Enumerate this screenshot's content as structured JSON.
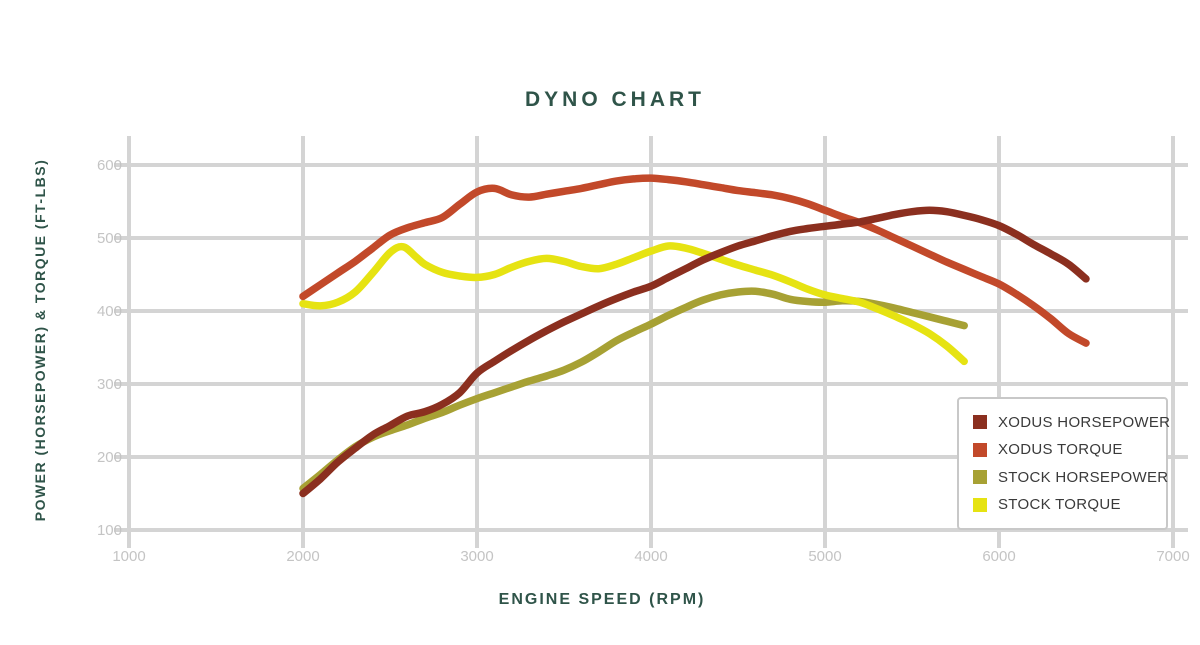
{
  "title": "DYNO CHART",
  "x_axis_label": "ENGINE SPEED (RPM)",
  "y_axis_label": "POWER (HORSEPOWER) & TORQUE (FT-LBS)",
  "colors": {
    "background": "#FFFFFF",
    "heading_text": "#2F5449",
    "grid": "#D4D4D4",
    "tick_text": "#C4C4C4",
    "legend_border": "#C8C8C8",
    "legend_text": "#3A3A3A",
    "xodus_horsepower": "#8B2F1F",
    "xodus_torque": "#C2492A",
    "stock_horsepower": "#A7A134",
    "stock_torque": "#E6E312"
  },
  "chart_data": {
    "type": "line",
    "title": "DYNO CHART",
    "xlabel": "ENGINE SPEED (RPM)",
    "ylabel": "POWER (HORSEPOWER) & TORQUE (FT-LBS)",
    "xlim": [
      1000,
      7000
    ],
    "ylim": [
      100,
      600
    ],
    "xticks": [
      1000,
      2000,
      3000,
      4000,
      5000,
      6000,
      7000
    ],
    "yticks": [
      100,
      200,
      300,
      400,
      500,
      600
    ],
    "grid": true,
    "legend_position": "lower right",
    "z_order": [
      "STOCK HORSEPOWER",
      "STOCK TORQUE",
      "XODUS TORQUE",
      "XODUS HORSEPOWER"
    ],
    "series": [
      {
        "name": "XODUS HORSEPOWER",
        "color": "#8B2F1F",
        "points": [
          [
            2000,
            150
          ],
          [
            2100,
            170
          ],
          [
            2200,
            193
          ],
          [
            2300,
            212
          ],
          [
            2400,
            230
          ],
          [
            2500,
            243
          ],
          [
            2600,
            256
          ],
          [
            2700,
            262
          ],
          [
            2800,
            272
          ],
          [
            2900,
            288
          ],
          [
            3000,
            315
          ],
          [
            3100,
            331
          ],
          [
            3200,
            346
          ],
          [
            3300,
            360
          ],
          [
            3400,
            373
          ],
          [
            3500,
            385
          ],
          [
            3600,
            396
          ],
          [
            3700,
            407
          ],
          [
            3800,
            417
          ],
          [
            3900,
            426
          ],
          [
            4000,
            434
          ],
          [
            4100,
            446
          ],
          [
            4200,
            458
          ],
          [
            4300,
            470
          ],
          [
            4400,
            480
          ],
          [
            4500,
            489
          ],
          [
            4600,
            496
          ],
          [
            4700,
            503
          ],
          [
            4800,
            509
          ],
          [
            4900,
            513
          ],
          [
            5000,
            516
          ],
          [
            5100,
            519
          ],
          [
            5200,
            522
          ],
          [
            5300,
            527
          ],
          [
            5400,
            532
          ],
          [
            5500,
            536
          ],
          [
            5600,
            538
          ],
          [
            5700,
            536
          ],
          [
            5800,
            531
          ],
          [
            5900,
            525
          ],
          [
            6000,
            517
          ],
          [
            6100,
            505
          ],
          [
            6200,
            491
          ],
          [
            6300,
            478
          ],
          [
            6400,
            464
          ],
          [
            6500,
            444
          ]
        ]
      },
      {
        "name": "XODUS TORQUE",
        "color": "#C2492A",
        "points": [
          [
            2000,
            420
          ],
          [
            2100,
            436
          ],
          [
            2200,
            452
          ],
          [
            2300,
            468
          ],
          [
            2400,
            486
          ],
          [
            2500,
            504
          ],
          [
            2600,
            514
          ],
          [
            2700,
            521
          ],
          [
            2800,
            528
          ],
          [
            2900,
            546
          ],
          [
            3000,
            563
          ],
          [
            3100,
            568
          ],
          [
            3200,
            559
          ],
          [
            3300,
            556
          ],
          [
            3400,
            560
          ],
          [
            3500,
            564
          ],
          [
            3600,
            568
          ],
          [
            3700,
            573
          ],
          [
            3800,
            578
          ],
          [
            3900,
            581
          ],
          [
            4000,
            582
          ],
          [
            4100,
            580
          ],
          [
            4200,
            577
          ],
          [
            4300,
            573
          ],
          [
            4400,
            569
          ],
          [
            4500,
            565
          ],
          [
            4600,
            562
          ],
          [
            4700,
            559
          ],
          [
            4800,
            554
          ],
          [
            4900,
            547
          ],
          [
            5000,
            538
          ],
          [
            5100,
            529
          ],
          [
            5200,
            521
          ],
          [
            5300,
            511
          ],
          [
            5400,
            500
          ],
          [
            5500,
            489
          ],
          [
            5600,
            478
          ],
          [
            5700,
            467
          ],
          [
            5800,
            457
          ],
          [
            5900,
            447
          ],
          [
            6000,
            437
          ],
          [
            6100,
            423
          ],
          [
            6200,
            407
          ],
          [
            6300,
            389
          ],
          [
            6400,
            369
          ],
          [
            6500,
            356
          ]
        ]
      },
      {
        "name": "STOCK HORSEPOWER",
        "color": "#A7A134",
        "points": [
          [
            2000,
            157
          ],
          [
            2100,
            176
          ],
          [
            2200,
            196
          ],
          [
            2300,
            214
          ],
          [
            2400,
            227
          ],
          [
            2500,
            236
          ],
          [
            2600,
            244
          ],
          [
            2700,
            253
          ],
          [
            2800,
            261
          ],
          [
            2900,
            271
          ],
          [
            3000,
            280
          ],
          [
            3100,
            288
          ],
          [
            3200,
            296
          ],
          [
            3300,
            304
          ],
          [
            3400,
            311
          ],
          [
            3500,
            319
          ],
          [
            3600,
            330
          ],
          [
            3700,
            344
          ],
          [
            3800,
            359
          ],
          [
            3900,
            371
          ],
          [
            4000,
            382
          ],
          [
            4100,
            394
          ],
          [
            4200,
            405
          ],
          [
            4300,
            415
          ],
          [
            4400,
            422
          ],
          [
            4500,
            426
          ],
          [
            4600,
            427
          ],
          [
            4700,
            423
          ],
          [
            4800,
            416
          ],
          [
            4900,
            413
          ],
          [
            5000,
            412
          ],
          [
            5100,
            414
          ],
          [
            5200,
            413
          ],
          [
            5300,
            409
          ],
          [
            5400,
            404
          ],
          [
            5500,
            398
          ],
          [
            5600,
            392
          ],
          [
            5700,
            386
          ],
          [
            5800,
            380
          ]
        ]
      },
      {
        "name": "STOCK TORQUE",
        "color": "#E6E312",
        "points": [
          [
            2000,
            410
          ],
          [
            2100,
            407
          ],
          [
            2200,
            412
          ],
          [
            2300,
            426
          ],
          [
            2400,
            452
          ],
          [
            2500,
            480
          ],
          [
            2575,
            488
          ],
          [
            2650,
            474
          ],
          [
            2700,
            464
          ],
          [
            2800,
            453
          ],
          [
            2900,
            448
          ],
          [
            3000,
            446
          ],
          [
            3100,
            450
          ],
          [
            3200,
            460
          ],
          [
            3300,
            468
          ],
          [
            3400,
            472
          ],
          [
            3500,
            468
          ],
          [
            3600,
            461
          ],
          [
            3700,
            458
          ],
          [
            3800,
            464
          ],
          [
            3900,
            473
          ],
          [
            4000,
            482
          ],
          [
            4100,
            489
          ],
          [
            4200,
            486
          ],
          [
            4300,
            479
          ],
          [
            4400,
            471
          ],
          [
            4500,
            463
          ],
          [
            4600,
            456
          ],
          [
            4700,
            449
          ],
          [
            4800,
            440
          ],
          [
            4900,
            430
          ],
          [
            5000,
            422
          ],
          [
            5100,
            417
          ],
          [
            5200,
            412
          ],
          [
            5300,
            403
          ],
          [
            5400,
            393
          ],
          [
            5500,
            382
          ],
          [
            5600,
            369
          ],
          [
            5700,
            352
          ],
          [
            5800,
            331
          ]
        ]
      }
    ]
  }
}
